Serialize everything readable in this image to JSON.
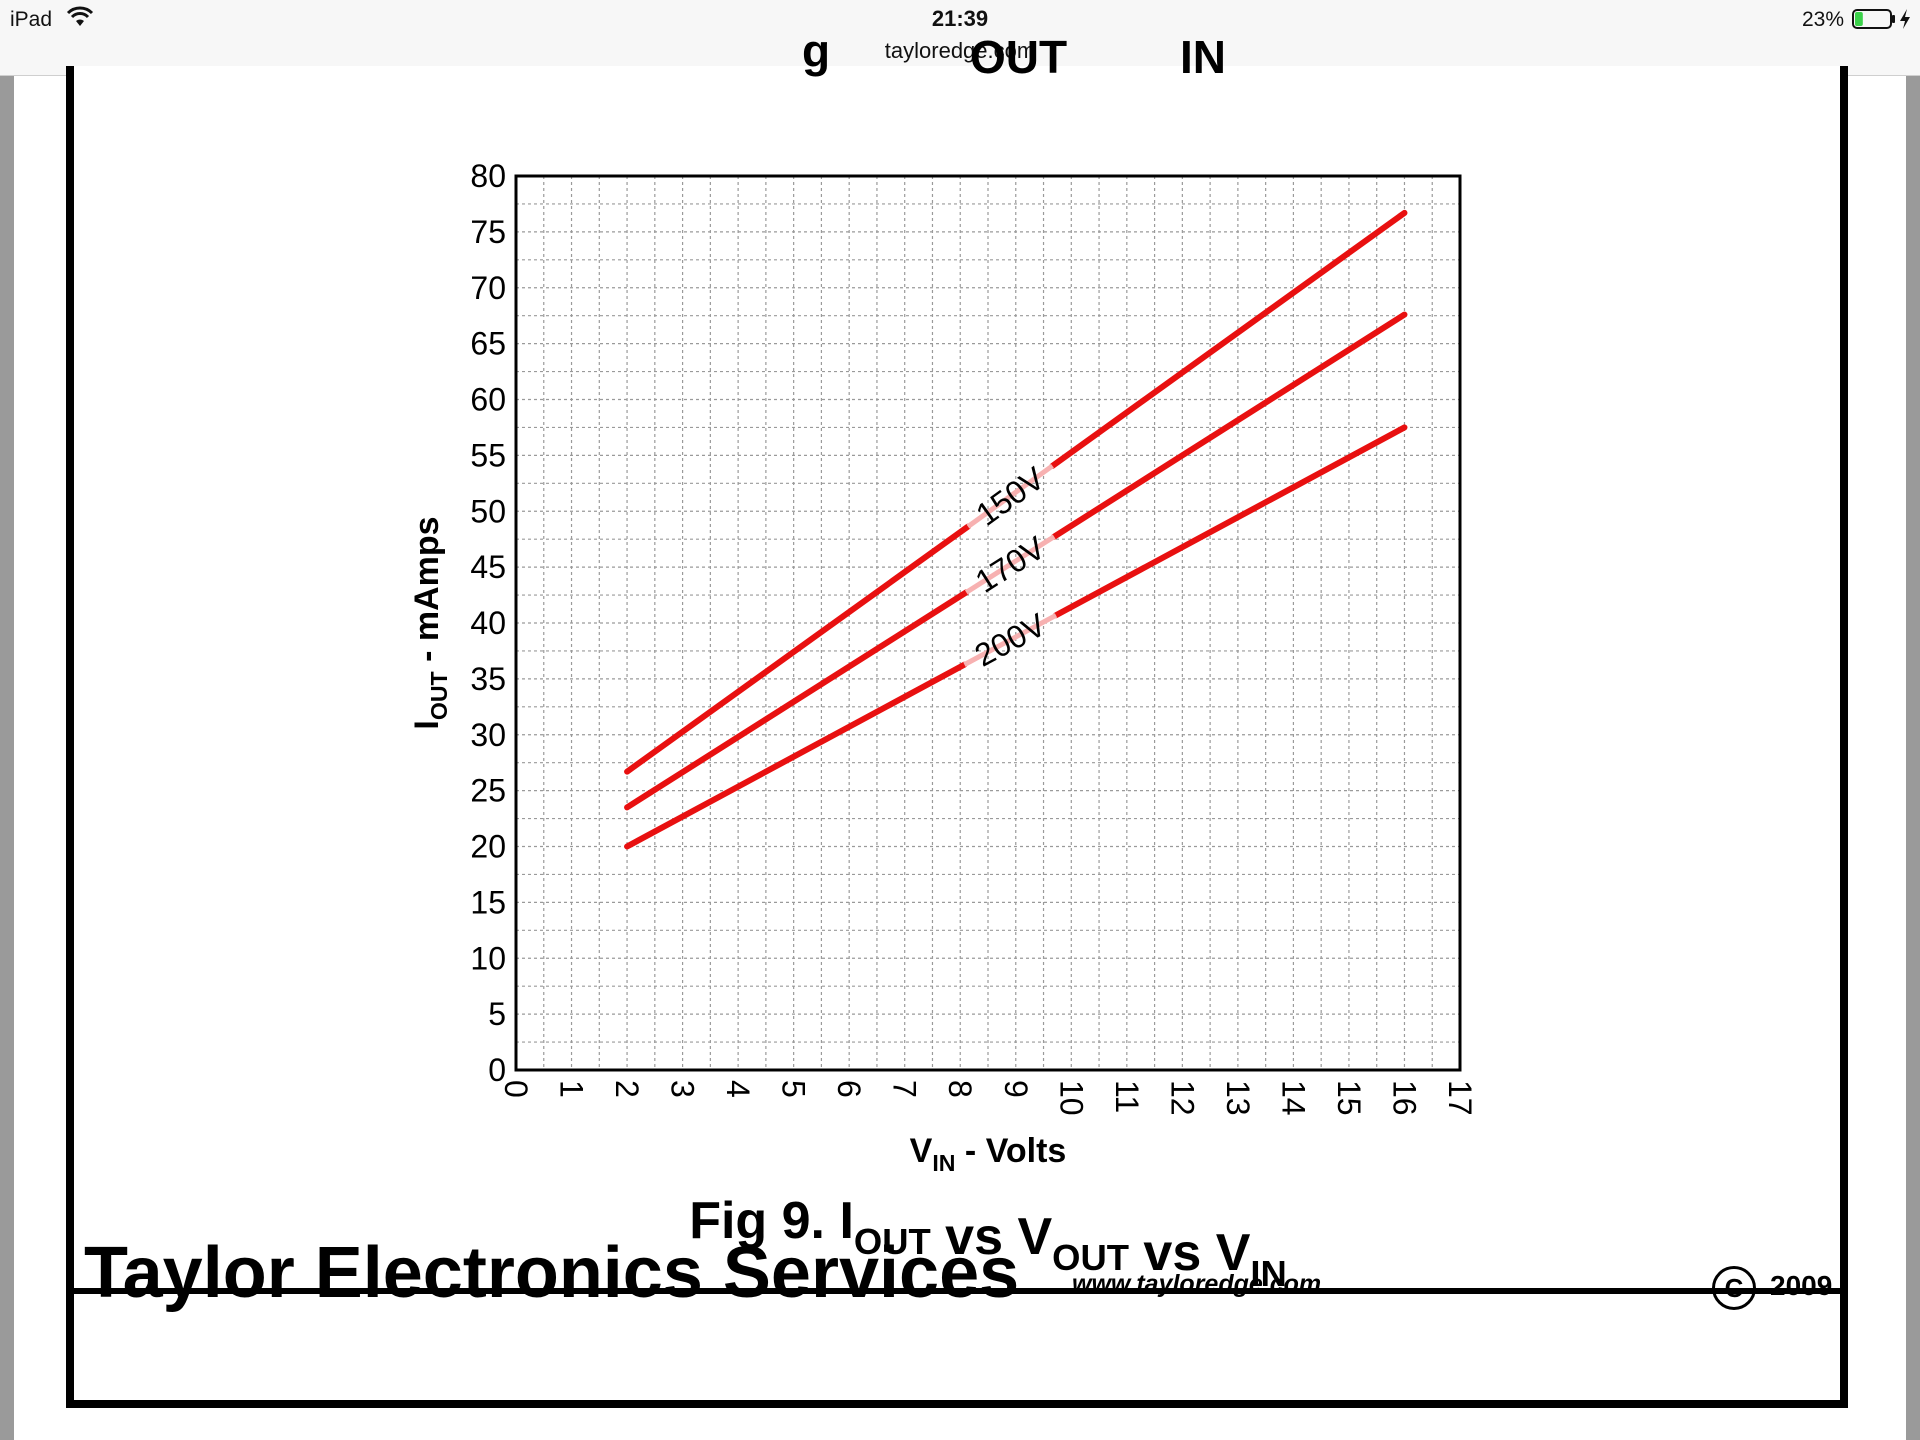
{
  "status_bar": {
    "device": "iPad",
    "time": "21:39",
    "url": "tayloredge.com",
    "battery_percent": "23%",
    "battery_level": 0.23,
    "wifi_icon": "wifi-icon",
    "battery_icon": "battery-icon",
    "charging_icon": "bolt-icon"
  },
  "cut_heading": {
    "part1": "g",
    "part2": "OUT",
    "part3": "IN"
  },
  "chart_data": {
    "type": "line",
    "title": "",
    "caption": {
      "prefix": "Fig 9.  ",
      "parts": [
        {
          "main": "I",
          "sub": "OUT"
        },
        {
          "main": " vs V",
          "sub": "OUT"
        },
        {
          "main": " vs V",
          "sub": "IN"
        }
      ]
    },
    "xlabel": {
      "main": "V",
      "sub": "IN",
      "suffix": " - Volts"
    },
    "ylabel": {
      "main": "I",
      "sub": "OUT",
      "suffix": " - mAmps"
    },
    "xlim": [
      0,
      17
    ],
    "ylim": [
      0,
      80
    ],
    "x_ticks": [
      "0",
      "1",
      "2",
      "3",
      "4",
      "5",
      "6",
      "7",
      "8",
      "9",
      "10",
      "11",
      "12",
      "13",
      "14",
      "15",
      "16",
      "17"
    ],
    "y_ticks": [
      "0",
      "5",
      "10",
      "15",
      "20",
      "25",
      "30",
      "35",
      "40",
      "45",
      "50",
      "55",
      "60",
      "65",
      "70",
      "75",
      "80"
    ],
    "grid": true,
    "series": [
      {
        "name": "150V",
        "x": [
          2,
          16
        ],
        "y": [
          26.7,
          76.7
        ],
        "label_at": 8.9
      },
      {
        "name": "170V",
        "x": [
          2,
          16
        ],
        "y": [
          23.5,
          67.6
        ],
        "label_at": 8.9
      },
      {
        "name": "200V",
        "x": [
          2,
          16
        ],
        "y": [
          20.0,
          57.5
        ],
        "label_at": 8.9
      }
    ],
    "line_color": "#e81010"
  },
  "footer": {
    "company": "Taylor Electronics Services",
    "website": "www.tayloredge.com",
    "copyright_symbol": "C",
    "year": "2009"
  }
}
